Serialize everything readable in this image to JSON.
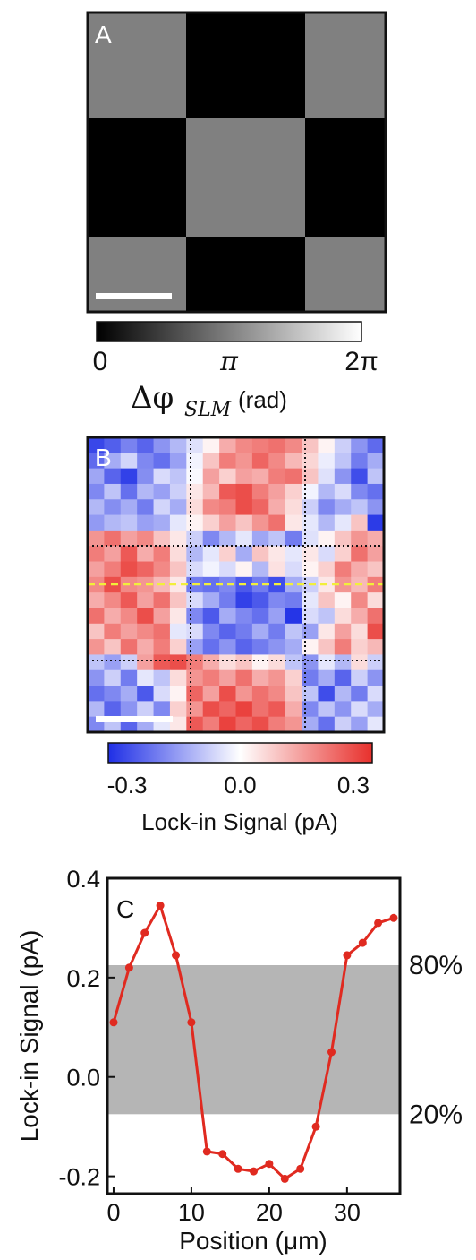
{
  "panels": {
    "a": {
      "letter": "A"
    },
    "b": {
      "letter": "B"
    },
    "c": {
      "letter": "C"
    }
  },
  "colors": {
    "gray_square": "#808080",
    "black_square": "#000000",
    "scale_bar": "#ffffff",
    "neg": "#1f2fe6",
    "pos": "#e8302c",
    "line": "#e02a20",
    "band": "#b5b5b5",
    "guide": "#f2ef3a"
  },
  "chart_data": [
    {
      "type": "heatmap",
      "panel": "A",
      "description_values": "checkerboard phase mask",
      "grid": [
        [
          1,
          0,
          1
        ],
        [
          0,
          1,
          0
        ],
        [
          1,
          0,
          1
        ]
      ],
      "value_meaning": {
        "1": "pi",
        "0": "0"
      },
      "colorbar": {
        "tick_labels": [
          "0",
          "π",
          "2π"
        ],
        "label_main": "Δφ",
        "label_sub": "SLM",
        "label_unit": "(rad)",
        "range": [
          0,
          6.2832
        ]
      }
    },
    {
      "type": "heatmap",
      "panel": "B",
      "grid": [
        [
          -0.31,
          -0.27,
          -0.21,
          -0.26,
          -0.18,
          -0.12,
          -0.05,
          0.02,
          0.14,
          0.2,
          0.22,
          0.24,
          0.2,
          0.1,
          0.02,
          -0.08,
          -0.18,
          -0.25
        ],
        [
          -0.25,
          -0.14,
          -0.07,
          -0.2,
          -0.24,
          -0.16,
          -0.02,
          0.1,
          0.22,
          0.18,
          0.26,
          0.2,
          0.12,
          0.07,
          -0.03,
          -0.1,
          -0.22,
          -0.14
        ],
        [
          -0.15,
          -0.26,
          -0.32,
          -0.19,
          -0.06,
          -0.1,
          -0.01,
          0.16,
          0.08,
          0.16,
          0.14,
          0.22,
          0.24,
          0.1,
          -0.05,
          -0.18,
          -0.3,
          -0.1
        ],
        [
          -0.2,
          -0.1,
          -0.24,
          -0.12,
          -0.16,
          -0.08,
          0.04,
          0.12,
          0.28,
          0.3,
          0.22,
          0.16,
          0.08,
          -0.02,
          -0.12,
          -0.06,
          -0.2,
          -0.24
        ],
        [
          -0.12,
          -0.19,
          -0.14,
          -0.22,
          -0.07,
          -0.14,
          0.06,
          0.2,
          0.22,
          0.3,
          0.26,
          0.14,
          0.06,
          -0.08,
          -0.2,
          -0.14,
          -0.1,
          -0.18
        ],
        [
          -0.17,
          -0.12,
          -0.1,
          -0.16,
          -0.14,
          -0.04,
          0.02,
          0.08,
          0.16,
          0.1,
          0.18,
          0.24,
          0.04,
          -0.04,
          -0.12,
          -0.04,
          0.1,
          -0.33
        ],
        [
          0.18,
          0.24,
          0.16,
          0.2,
          0.1,
          0.04,
          -0.08,
          -0.2,
          -0.12,
          -0.04,
          -0.15,
          -0.1,
          -0.22,
          -0.05,
          0.02,
          0.1,
          0.18,
          0.14
        ],
        [
          0.22,
          0.16,
          0.28,
          0.14,
          0.22,
          0.06,
          -0.12,
          -0.04,
          0.08,
          -0.14,
          0.1,
          0.04,
          -0.04,
          0.04,
          -0.06,
          0.08,
          0.24,
          0.16
        ],
        [
          0.16,
          0.22,
          0.3,
          0.26,
          0.2,
          0.1,
          -0.06,
          -0.02,
          -0.06,
          0.02,
          -0.12,
          0.05,
          -0.06,
          0.02,
          0.08,
          0.22,
          0.14,
          0.1
        ],
        [
          0.2,
          0.3,
          0.2,
          0.18,
          0.12,
          0.04,
          -0.22,
          -0.24,
          -0.2,
          -0.28,
          -0.22,
          -0.3,
          -0.14,
          -0.08,
          0.04,
          0.18,
          0.12,
          0.22
        ],
        [
          0.14,
          0.2,
          0.28,
          0.16,
          0.24,
          0.1,
          -0.06,
          -0.14,
          -0.22,
          -0.32,
          -0.28,
          -0.2,
          -0.22,
          -0.04,
          0.1,
          0.02,
          0.2,
          0.06
        ],
        [
          0.24,
          0.14,
          0.2,
          0.3,
          0.16,
          0.04,
          -0.2,
          -0.28,
          -0.14,
          -0.2,
          -0.24,
          -0.16,
          -0.34,
          -0.06,
          -0.1,
          0.06,
          0.14,
          0.24
        ],
        [
          0.1,
          0.22,
          0.16,
          0.2,
          0.24,
          -0.04,
          -0.06,
          -0.2,
          -0.26,
          -0.22,
          -0.14,
          -0.22,
          -0.1,
          -0.16,
          0.04,
          0.16,
          0.06,
          0.3
        ],
        [
          0.18,
          0.1,
          0.24,
          0.14,
          0.22,
          0.08,
          -0.16,
          -0.24,
          -0.18,
          -0.26,
          -0.22,
          -0.18,
          -0.14,
          0.02,
          0.1,
          0.22,
          0.08,
          0.12
        ],
        [
          -0.1,
          -0.16,
          -0.08,
          0.16,
          0.28,
          0.3,
          0.22,
          0.14,
          0.06,
          0.1,
          0.02,
          0.06,
          -0.1,
          -0.18,
          -0.04,
          -0.12,
          0.06,
          -0.08
        ],
        [
          -0.18,
          -0.08,
          -0.22,
          -0.04,
          -0.1,
          0.06,
          0.18,
          0.22,
          0.16,
          0.24,
          0.14,
          0.18,
          0.08,
          -0.22,
          -0.14,
          -0.26,
          -0.08,
          -0.18
        ],
        [
          -0.24,
          -0.2,
          -0.14,
          -0.28,
          -0.06,
          0.02,
          0.26,
          0.16,
          0.3,
          0.18,
          0.24,
          0.2,
          0.1,
          -0.1,
          -0.3,
          -0.12,
          -0.22,
          -0.06
        ],
        [
          -0.12,
          -0.26,
          -0.18,
          -0.08,
          -0.2,
          0.08,
          0.18,
          0.3,
          0.26,
          0.32,
          0.24,
          0.28,
          0.14,
          -0.2,
          -0.1,
          -0.18,
          -0.06,
          -0.14
        ],
        [
          -0.2,
          -0.1,
          -0.26,
          -0.14,
          -0.04,
          0.04,
          0.28,
          0.22,
          0.32,
          0.26,
          0.3,
          0.22,
          0.18,
          -0.14,
          -0.24,
          -0.08,
          -0.16,
          -0.04
        ]
      ],
      "colorbar": {
        "range": [
          -0.35,
          0.35
        ],
        "ticks": [
          -0.3,
          0.0,
          0.3
        ],
        "tick_labels": [
          "-0.3",
          "0.0",
          "0.3"
        ],
        "label": "Lock-in Signal (pA)"
      }
    },
    {
      "type": "line",
      "panel": "C",
      "x": [
        0,
        2,
        4,
        6,
        8,
        10,
        12,
        14,
        16,
        18,
        20,
        22,
        24,
        26,
        28,
        30,
        32,
        34,
        36
      ],
      "y": [
        0.11,
        0.22,
        0.29,
        0.345,
        0.245,
        0.11,
        -0.15,
        -0.155,
        -0.185,
        -0.19,
        -0.175,
        -0.205,
        -0.185,
        -0.1,
        0.05,
        0.245,
        0.27,
        0.31,
        0.32
      ],
      "xlabel": "Position (μm)",
      "ylabel": "Lock-in Signal (pA)",
      "xlim": [
        -0.8,
        36.8
      ],
      "ylim": [
        -0.235,
        0.4
      ],
      "xticks": [
        0,
        10,
        20,
        30
      ],
      "xtick_labels": [
        "0",
        "10",
        "20",
        "30"
      ],
      "yticks": [
        -0.2,
        0.0,
        0.2,
        0.4
      ],
      "ytick_labels": [
        "-0.2",
        "0.0",
        "0.2",
        "0.4"
      ],
      "band": {
        "y_low": -0.075,
        "y_high": 0.225
      },
      "annotations": [
        "80%",
        "20%"
      ]
    }
  ]
}
